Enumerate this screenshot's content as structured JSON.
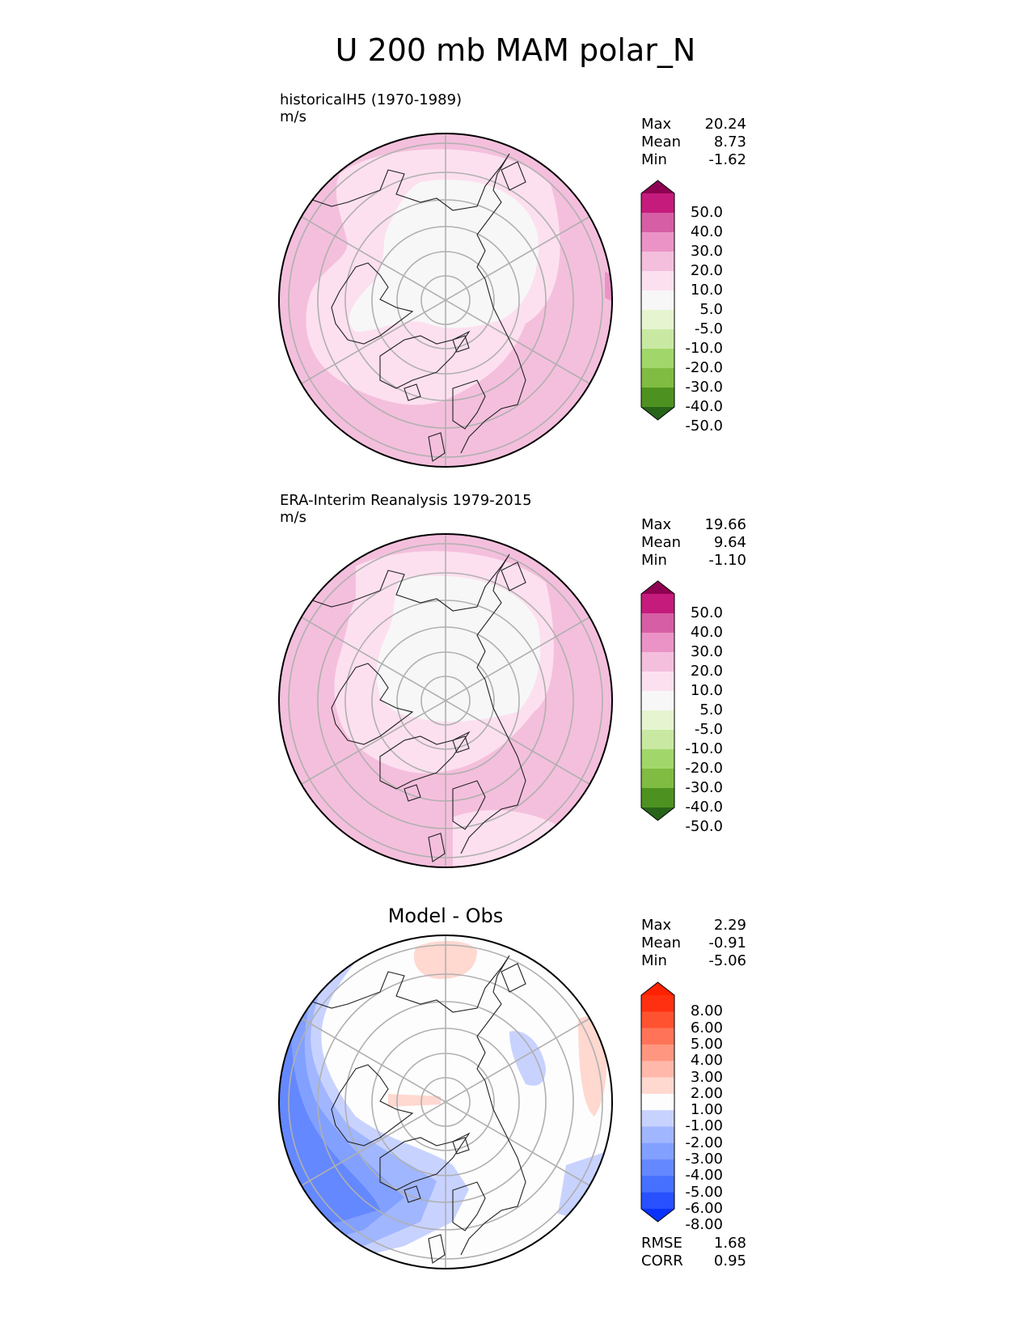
{
  "figure_title": "U 200 mb MAM polar_N",
  "panels": [
    {
      "label": "historicalH5 (1970-1989)",
      "units": "m/s",
      "stats": [
        {
          "name": "Max",
          "value": "20.24"
        },
        {
          "name": "Mean",
          "value": "8.73"
        },
        {
          "name": "Min",
          "value": "-1.62"
        }
      ],
      "colorbar_ticks": [
        "50.0",
        "40.0",
        "30.0",
        "20.0",
        "10.0",
        "5.0",
        "-5.0",
        "-10.0",
        "-20.0",
        "-30.0",
        "-40.0",
        "-50.0"
      ]
    },
    {
      "label": "ERA-Interim Reanalysis 1979-2015",
      "units": "m/s",
      "stats": [
        {
          "name": "Max",
          "value": "19.66"
        },
        {
          "name": "Mean",
          "value": "9.64"
        },
        {
          "name": "Min",
          "value": "-1.10"
        }
      ],
      "colorbar_ticks": [
        "50.0",
        "40.0",
        "30.0",
        "20.0",
        "10.0",
        "5.0",
        "-5.0",
        "-10.0",
        "-20.0",
        "-30.0",
        "-40.0",
        "-50.0"
      ]
    },
    {
      "title": "Model - Obs",
      "stats": [
        {
          "name": "Max",
          "value": "2.29"
        },
        {
          "name": "Mean",
          "value": "-0.91"
        },
        {
          "name": "Min",
          "value": "-5.06"
        }
      ],
      "colorbar_ticks": [
        "8.00",
        "6.00",
        "5.00",
        "4.00",
        "3.00",
        "2.00",
        "1.00",
        "-1.00",
        "-2.00",
        "-3.00",
        "-4.00",
        "-5.00",
        "-6.00",
        "-8.00"
      ],
      "metrics": [
        {
          "name": "RMSE",
          "value": "1.68"
        },
        {
          "name": "CORR",
          "value": "0.95"
        }
      ]
    }
  ],
  "chart_data": [
    {
      "type": "heatmap",
      "title": "historicalH5 (1970-1989)",
      "projection": "north polar stereographic",
      "units": "m/s",
      "levels": [
        -50,
        -40,
        -30,
        -20,
        -10,
        -5,
        5,
        10,
        20,
        30,
        40,
        50
      ],
      "colors": [
        "#276419",
        "#4d9221",
        "#7fbc41",
        "#a1d76a",
        "#c9e9a3",
        "#e6f5d0",
        "#f7f7f7",
        "#fde0ef",
        "#f4bfdc",
        "#eb93c6",
        "#d65ea4",
        "#c51b7d",
        "#8e0152"
      ],
      "max": 20.24,
      "mean": 8.73,
      "min": -1.62
    },
    {
      "type": "heatmap",
      "title": "ERA-Interim Reanalysis 1979-2015",
      "projection": "north polar stereographic",
      "units": "m/s",
      "levels": [
        -50,
        -40,
        -30,
        -20,
        -10,
        -5,
        5,
        10,
        20,
        30,
        40,
        50
      ],
      "colors": [
        "#276419",
        "#4d9221",
        "#7fbc41",
        "#a1d76a",
        "#c9e9a3",
        "#e6f5d0",
        "#f7f7f7",
        "#fde0ef",
        "#f4bfdc",
        "#eb93c6",
        "#d65ea4",
        "#c51b7d",
        "#8e0152"
      ],
      "max": 19.66,
      "mean": 9.64,
      "min": -1.1
    },
    {
      "type": "heatmap",
      "title": "Model - Obs",
      "projection": "north polar stereographic",
      "levels": [
        -8,
        -6,
        -5,
        -4,
        -3,
        -2,
        -1,
        1,
        2,
        3,
        4,
        5,
        6,
        8
      ],
      "colors": [
        "#0a32ff",
        "#2850ff",
        "#4670ff",
        "#6488ff",
        "#82a0ff",
        "#a0b6ff",
        "#c8d2ff",
        "#fdfdfd",
        "#ffd8d0",
        "#ffb8aa",
        "#ff9680",
        "#ff7458",
        "#ff5230",
        "#ff3010",
        "#ff2200"
      ],
      "max": 2.29,
      "mean": -0.91,
      "min": -5.06,
      "rmse": 1.68,
      "corr": 0.95
    }
  ]
}
